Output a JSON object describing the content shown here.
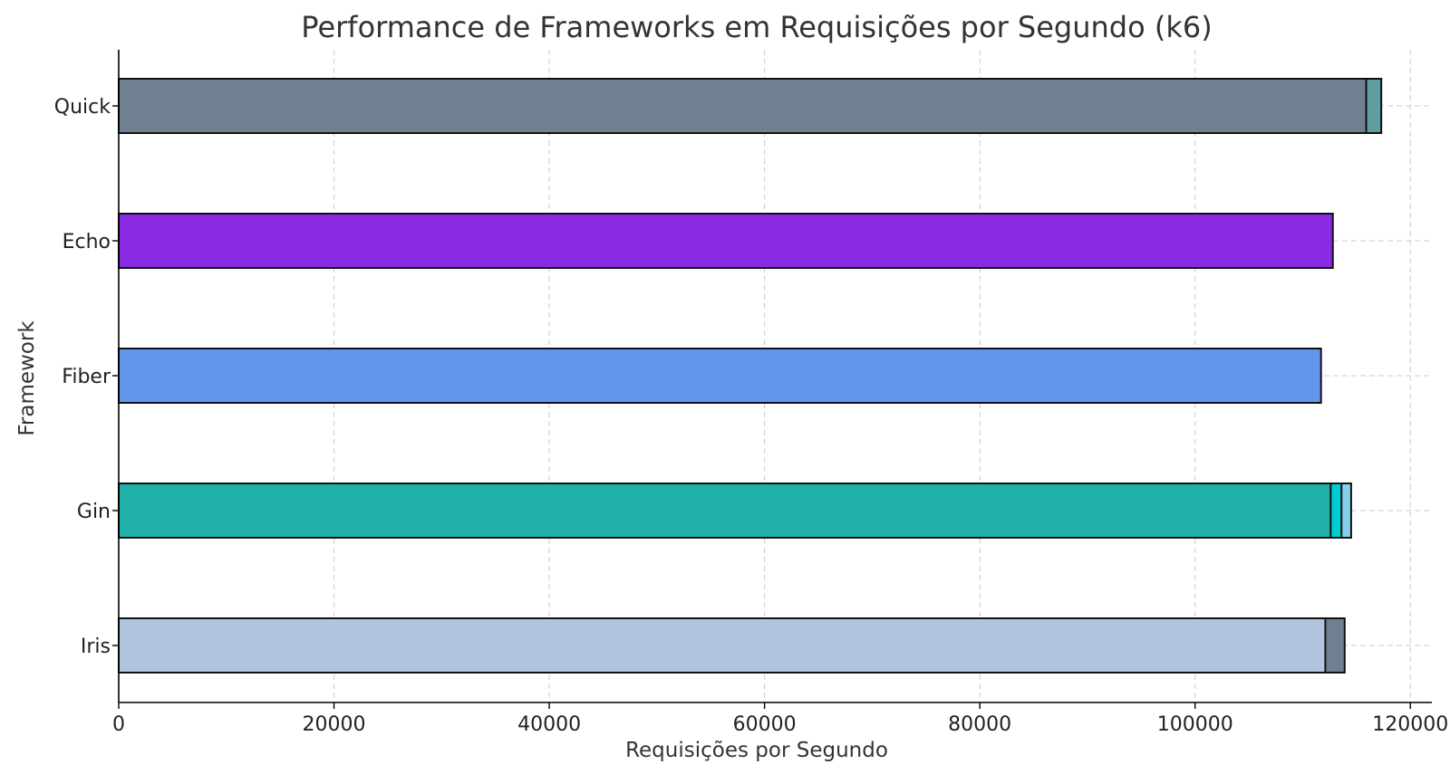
{
  "chart_data": {
    "type": "bar",
    "orientation": "horizontal",
    "stacked": false,
    "overlapping": true,
    "title": "Performance de Frameworks em Requisições por Segundo (k6)",
    "xlabel": "Requisições por Segundo",
    "ylabel": "Framework",
    "xlim": [
      0,
      122000
    ],
    "xticks": [
      0,
      20000,
      40000,
      60000,
      80000,
      100000,
      120000
    ],
    "xtick_labels": [
      "0",
      "20000",
      "40000",
      "60000",
      "80000",
      "100000",
      "120000"
    ],
    "categories": [
      "Quick",
      "Echo",
      "Fiber",
      "Gin",
      "Iris"
    ],
    "bars": [
      {
        "category": "Quick",
        "value": 117300,
        "color": "#5f9ea0"
      },
      {
        "category": "Quick",
        "value": 115900,
        "color": "#708090"
      },
      {
        "category": "Echo",
        "value": 112800,
        "color": "#8a2be2"
      },
      {
        "category": "Fiber",
        "value": 111700,
        "color": "#6495ed"
      },
      {
        "category": "Gin",
        "value": 114500,
        "color": "#87ceeb"
      },
      {
        "category": "Gin",
        "value": 113600,
        "color": "#00ced1"
      },
      {
        "category": "Gin",
        "value": 112600,
        "color": "#20b2aa"
      },
      {
        "category": "Iris",
        "value": 113900,
        "color": "#708090"
      },
      {
        "category": "Iris",
        "value": 112100,
        "color": "#b0c4de"
      }
    ],
    "grid": true,
    "legend": "none"
  }
}
